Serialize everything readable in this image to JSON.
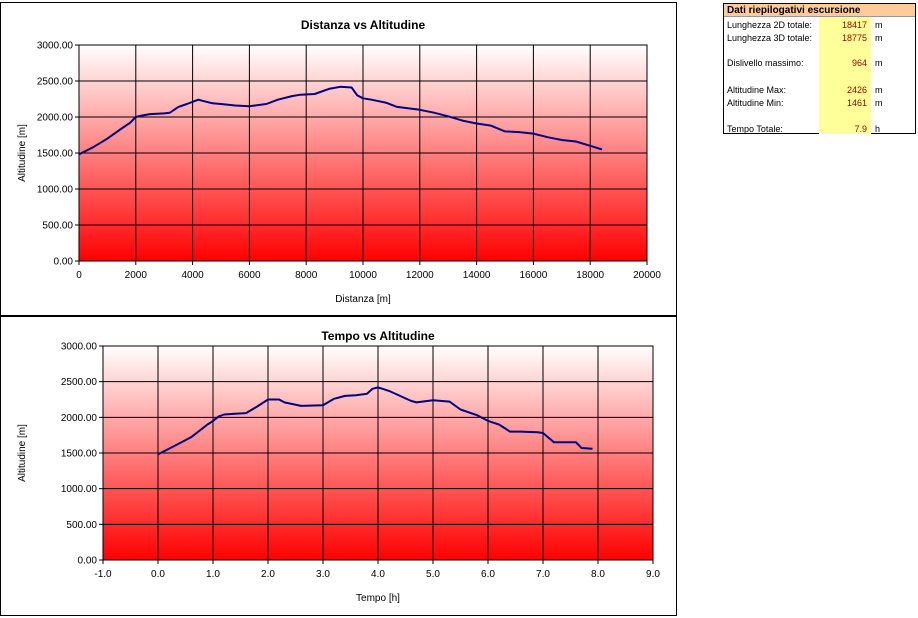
{
  "summary": {
    "title": "Dati riepilogativi escursione",
    "rows": [
      {
        "label": "Lunghezza 2D totale:",
        "value": "18417",
        "unit": "m"
      },
      {
        "label": "Lunghezza 3D totale:",
        "value": "18775",
        "unit": "m"
      },
      {
        "label": "Dislivello massimo:",
        "value": "964",
        "unit": "m"
      },
      {
        "label": "Altitudine Max:",
        "value": "2426",
        "unit": "m"
      },
      {
        "label": "Altitudine Min:",
        "value": "1461",
        "unit": "m"
      },
      {
        "label": "Tempo Totale:",
        "value": "7.9",
        "unit": "h"
      }
    ]
  },
  "colors": {
    "line": "#000080",
    "plot_top": "#ffffff",
    "plot_bottom": "#ff0000"
  },
  "chart_data": [
    {
      "type": "line",
      "title": "Distanza vs Altitudine",
      "xlabel": "Distanza [m]",
      "ylabel": "Altitudine [m]",
      "xlim": [
        0,
        20000
      ],
      "ylim": [
        0,
        3000
      ],
      "xticks": [
        "0",
        "2000",
        "4000",
        "6000",
        "8000",
        "10000",
        "12000",
        "14000",
        "16000",
        "18000",
        "20000"
      ],
      "yticks": [
        "0.00",
        "500.00",
        "1000.00",
        "1500.00",
        "2000.00",
        "2500.00",
        "3000.00"
      ],
      "grid": true,
      "series": [
        {
          "x": [
            0,
            500,
            1000,
            1500,
            1800,
            2000,
            2200,
            2500,
            3000,
            3200,
            3500,
            3800,
            4200,
            4400,
            4700,
            5000,
            5500,
            6000,
            6600,
            7000,
            7500,
            7800,
            8300,
            8800,
            9200,
            9600,
            9800,
            10000,
            10300,
            10800,
            11200,
            12000,
            12500,
            13000,
            13500,
            14000,
            14500,
            15000,
            15500,
            16000,
            16500,
            17000,
            17500,
            18000,
            18417
          ],
          "y": [
            1480,
            1580,
            1700,
            1840,
            1920,
            2000,
            2020,
            2040,
            2050,
            2060,
            2140,
            2180,
            2240,
            2220,
            2190,
            2180,
            2160,
            2150,
            2180,
            2240,
            2290,
            2310,
            2320,
            2390,
            2420,
            2410,
            2300,
            2260,
            2240,
            2200,
            2140,
            2100,
            2060,
            2010,
            1950,
            1910,
            1880,
            1800,
            1790,
            1770,
            1720,
            1680,
            1660,
            1600,
            1550
          ]
        }
      ]
    },
    {
      "type": "line",
      "title": "Tempo vs Altitudine",
      "xlabel": "Tempo [h]",
      "ylabel": "Altitudine [m]",
      "xlim": [
        -1.0,
        9.0
      ],
      "ylim": [
        0,
        3000
      ],
      "xticks": [
        "-1.0",
        "0.0",
        "1.0",
        "2.0",
        "3.0",
        "4.0",
        "5.0",
        "6.0",
        "7.0",
        "8.0",
        "9.0"
      ],
      "yticks": [
        "0.00",
        "500.00",
        "1000.00",
        "1500.00",
        "2000.00",
        "2500.00",
        "3000.00"
      ],
      "grid": true,
      "series": [
        {
          "x": [
            0,
            0.3,
            0.6,
            0.9,
            1.0,
            1.1,
            1.2,
            1.4,
            1.6,
            1.8,
            2.0,
            2.2,
            2.3,
            2.6,
            3.0,
            3.2,
            3.4,
            3.6,
            3.8,
            3.9,
            4.0,
            4.2,
            4.4,
            4.6,
            4.7,
            5.0,
            5.3,
            5.5,
            5.8,
            6.0,
            6.2,
            6.4,
            6.6,
            6.9,
            7.0,
            7.2,
            7.6,
            7.7,
            7.9
          ],
          "y": [
            1480,
            1600,
            1720,
            1900,
            1950,
            2010,
            2040,
            2050,
            2060,
            2150,
            2250,
            2250,
            2210,
            2160,
            2170,
            2260,
            2300,
            2310,
            2330,
            2400,
            2420,
            2370,
            2300,
            2230,
            2210,
            2240,
            2220,
            2110,
            2030,
            1950,
            1900,
            1800,
            1800,
            1790,
            1780,
            1650,
            1650,
            1570,
            1560
          ]
        }
      ]
    }
  ]
}
